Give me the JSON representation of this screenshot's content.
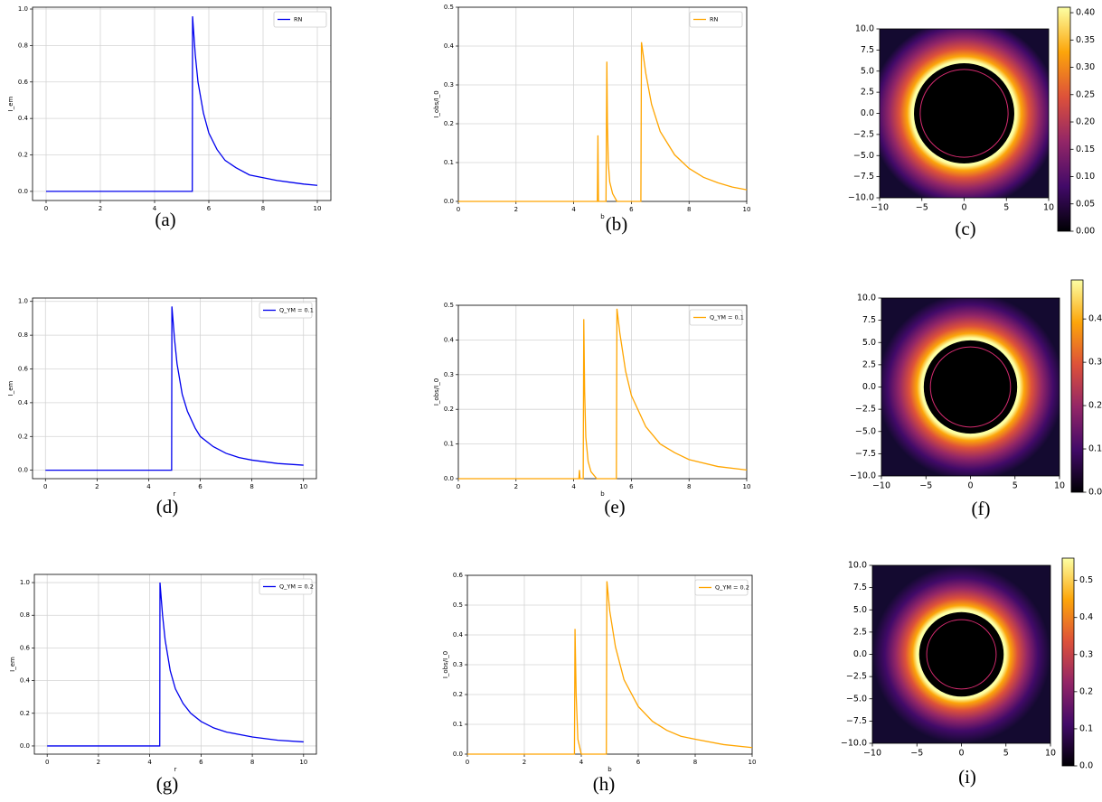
{
  "chart_data": [
    {
      "type": "line",
      "caption": "(a)",
      "ylabel": "I_em",
      "xlim": [
        -0.5,
        10.5
      ],
      "ylim": [
        -0.05,
        1.01
      ],
      "xticks": [
        0,
        2,
        4,
        6,
        8,
        10
      ],
      "yticks": [
        {
          "value": 0,
          "label": "0.0"
        },
        0.2,
        0.4,
        0.6,
        0.8,
        {
          "value": 1,
          "label": "1.0"
        }
      ],
      "grid": true,
      "legend": "upper right",
      "x": [
        0,
        5.39,
        5.4,
        5.5,
        5.6,
        5.8,
        6,
        6.3,
        6.6,
        7,
        7.5,
        8,
        8.5,
        9,
        9.5,
        10
      ],
      "series": [
        {
          "name": "RN",
          "color": "#0000ee",
          "values": [
            0,
            0,
            0.96,
            0.75,
            0.6,
            0.43,
            0.32,
            0.23,
            0.17,
            0.13,
            0.09,
            0.075,
            0.06,
            0.05,
            0.04,
            0.033
          ]
        }
      ]
    },
    {
      "type": "line",
      "caption": "(b)",
      "xlabel": "b",
      "ylabel": "I_obs/I_0",
      "xlim": [
        0,
        10
      ],
      "ylim": [
        0,
        0.5
      ],
      "xticks": [
        0,
        2,
        4,
        6,
        8,
        10
      ],
      "yticks": [
        {
          "value": 0,
          "label": "0.0"
        },
        0.1,
        0.2,
        0.3,
        0.4,
        0.5
      ],
      "grid": true,
      "legend": "upper right",
      "x": [
        0,
        4.82,
        4.84,
        4.86,
        4.9,
        5.12,
        5.15,
        5.17,
        5.2,
        5.25,
        5.35,
        5.5,
        6.33,
        6.35,
        6.5,
        6.7,
        7,
        7.5,
        8,
        8.5,
        9,
        9.5,
        10
      ],
      "series": [
        {
          "name": "RN",
          "color": "#ffa500",
          "values": [
            0,
            0,
            0.17,
            0,
            0,
            0,
            0.36,
            0.2,
            0.1,
            0.05,
            0.02,
            0,
            0,
            0.41,
            0.33,
            0.25,
            0.18,
            0.12,
            0.085,
            0.062,
            0.048,
            0.037,
            0.03
          ]
        }
      ]
    },
    {
      "type": "image",
      "caption": "(c)",
      "xlim": [
        -10,
        10
      ],
      "ylim": [
        -10,
        10
      ],
      "xticks": [
        {
          "value": -10,
          "label": "−10"
        },
        {
          "value": -5,
          "label": "−5"
        },
        0,
        5,
        10
      ],
      "yticks": [
        {
          "value": -10,
          "label": "−10.0"
        },
        {
          "value": -7.5,
          "label": "−7.5"
        },
        {
          "value": -5,
          "label": "−5.0"
        },
        {
          "value": -2.5,
          "label": "−2.5"
        },
        {
          "value": 0,
          "label": "0.0"
        },
        2.5,
        {
          "value": 5,
          "label": "5.0"
        },
        7.5,
        {
          "value": 10,
          "label": "10.0"
        }
      ],
      "colormap": "inferno",
      "clim": [
        0,
        0.41
      ],
      "cticks": [
        {
          "value": 0,
          "label": "0.00"
        },
        0.05,
        {
          "value": 0.1,
          "label": "0.10"
        },
        0.15,
        {
          "value": 0.2,
          "label": "0.20"
        },
        0.25,
        {
          "value": 0.3,
          "label": "0.30"
        },
        0.35,
        {
          "value": 0.4,
          "label": "0.40"
        }
      ],
      "ring_radius": 6.2,
      "photon_ring_radius": 5.2
    },
    {
      "type": "line",
      "caption": "(d)",
      "xlabel": "r",
      "ylabel": "I_em",
      "xlim": [
        -0.5,
        10.5
      ],
      "ylim": [
        -0.05,
        1.02
      ],
      "xticks": [
        0,
        2,
        4,
        6,
        8,
        10
      ],
      "yticks": [
        {
          "value": 0,
          "label": "0.0"
        },
        0.2,
        0.4,
        0.6,
        0.8,
        {
          "value": 1,
          "label": "1.0"
        }
      ],
      "grid": true,
      "legend": "upper right",
      "x": [
        0,
        4.89,
        4.9,
        5,
        5.1,
        5.3,
        5.5,
        5.8,
        6,
        6.5,
        7,
        7.5,
        8,
        9,
        10
      ],
      "series": [
        {
          "name": "Q_YM = 0.1",
          "color": "#0000ee",
          "values": [
            0,
            0,
            0.97,
            0.78,
            0.63,
            0.45,
            0.35,
            0.25,
            0.2,
            0.14,
            0.1,
            0.075,
            0.06,
            0.04,
            0.03
          ]
        }
      ]
    },
    {
      "type": "line",
      "caption": "(e)",
      "xlabel": "b",
      "ylabel": "I_obs/I_0",
      "xlim": [
        0,
        10
      ],
      "ylim": [
        0,
        0.5
      ],
      "xticks": [
        0,
        2,
        4,
        6,
        8,
        10
      ],
      "yticks": [
        {
          "value": 0,
          "label": "0.0"
        },
        0.1,
        0.2,
        0.3,
        0.4,
        0.5
      ],
      "grid": true,
      "legend": "upper right",
      "x": [
        0,
        4.18,
        4.2,
        4.22,
        4.33,
        4.35,
        4.38,
        4.42,
        4.5,
        4.6,
        4.8,
        5.48,
        5.5,
        5.6,
        5.8,
        6,
        6.5,
        7,
        7.5,
        8,
        9,
        10
      ],
      "series": [
        {
          "name": "Q_YM = 0.1",
          "color": "#ffa500",
          "values": [
            0,
            0,
            0.025,
            0,
            0,
            0.46,
            0.25,
            0.12,
            0.05,
            0.02,
            0,
            0,
            0.49,
            0.42,
            0.31,
            0.24,
            0.15,
            0.1,
            0.075,
            0.055,
            0.035,
            0.025
          ]
        }
      ]
    },
    {
      "type": "image",
      "caption": "(f)",
      "xlim": [
        -10,
        10
      ],
      "ylim": [
        -10,
        10
      ],
      "xticks": [
        {
          "value": -10,
          "label": "−10"
        },
        {
          "value": -5,
          "label": "−5"
        },
        0,
        5,
        10
      ],
      "yticks": [
        {
          "value": -10,
          "label": "−10.0"
        },
        {
          "value": -7.5,
          "label": "−7.5"
        },
        {
          "value": -5,
          "label": "−5.0"
        },
        {
          "value": -2.5,
          "label": "−2.5"
        },
        {
          "value": 0,
          "label": "0.0"
        },
        2.5,
        {
          "value": 5,
          "label": "5.0"
        },
        7.5,
        {
          "value": 10,
          "label": "10.0"
        }
      ],
      "colormap": "inferno",
      "clim": [
        0,
        0.49
      ],
      "cticks": [
        {
          "value": 0,
          "label": "0.0"
        },
        0.1,
        0.2,
        0.3,
        0.4
      ],
      "ring_radius": 5.5,
      "photon_ring_radius": 4.5
    },
    {
      "type": "line",
      "caption": "(g)",
      "xlabel": "r",
      "ylabel": "I_em",
      "xlim": [
        -0.5,
        10.5
      ],
      "ylim": [
        -0.05,
        1.05
      ],
      "xticks": [
        0,
        2,
        4,
        6,
        8,
        10
      ],
      "yticks": [
        {
          "value": 0,
          "label": "0.0"
        },
        0.2,
        0.4,
        0.6,
        0.8,
        {
          "value": 1,
          "label": "1.0"
        }
      ],
      "grid": true,
      "legend": "upper right",
      "x": [
        0,
        4.39,
        4.4,
        4.5,
        4.6,
        4.8,
        5,
        5.3,
        5.6,
        6,
        6.5,
        7,
        8,
        9,
        10
      ],
      "series": [
        {
          "name": "Q_YM = 0.2",
          "color": "#0000ee",
          "values": [
            0,
            0,
            1.0,
            0.8,
            0.65,
            0.46,
            0.35,
            0.26,
            0.2,
            0.15,
            0.11,
            0.085,
            0.055,
            0.035,
            0.025
          ]
        }
      ]
    },
    {
      "type": "line",
      "caption": "(h)",
      "xlabel": "b",
      "ylabel": "I_obs/I_0",
      "xlim": [
        0,
        10
      ],
      "ylim": [
        0,
        0.6
      ],
      "xticks": [
        0,
        2,
        4,
        6,
        8,
        10
      ],
      "yticks": [
        {
          "value": 0,
          "label": "0.0"
        },
        0.1,
        0.2,
        0.3,
        0.4,
        0.5,
        0.6
      ],
      "grid": true,
      "legend": "upper right",
      "x": [
        0,
        3.76,
        3.78,
        3.82,
        3.88,
        4,
        4.88,
        4.9,
        5,
        5.2,
        5.5,
        6,
        6.5,
        7,
        7.5,
        8,
        9,
        10
      ],
      "series": [
        {
          "name": "Q_YM = 0.2",
          "color": "#ffa500",
          "values": [
            0,
            0,
            0.42,
            0.2,
            0.05,
            0,
            0,
            0.58,
            0.48,
            0.36,
            0.25,
            0.16,
            0.11,
            0.08,
            0.06,
            0.05,
            0.032,
            0.022
          ]
        }
      ]
    },
    {
      "type": "image",
      "caption": "(i)",
      "xlim": [
        -10,
        10
      ],
      "ylim": [
        -10,
        10
      ],
      "xticks": [
        {
          "value": -10,
          "label": "−10"
        },
        {
          "value": -5,
          "label": "−5"
        },
        0,
        5,
        10
      ],
      "yticks": [
        {
          "value": -10,
          "label": "−10.0"
        },
        {
          "value": -7.5,
          "label": "−7.5"
        },
        {
          "value": -5,
          "label": "−5.0"
        },
        {
          "value": -2.5,
          "label": "−2.5"
        },
        {
          "value": 0,
          "label": "0.0"
        },
        2.5,
        {
          "value": 5,
          "label": "5.0"
        },
        7.5,
        {
          "value": 10,
          "label": "10.0"
        }
      ],
      "colormap": "inferno",
      "clim": [
        0,
        0.56
      ],
      "cticks": [
        {
          "value": 0,
          "label": "0.0"
        },
        0.1,
        0.2,
        0.3,
        0.4,
        0.5
      ],
      "ring_radius": 5.0,
      "photon_ring_radius": 3.9
    }
  ]
}
